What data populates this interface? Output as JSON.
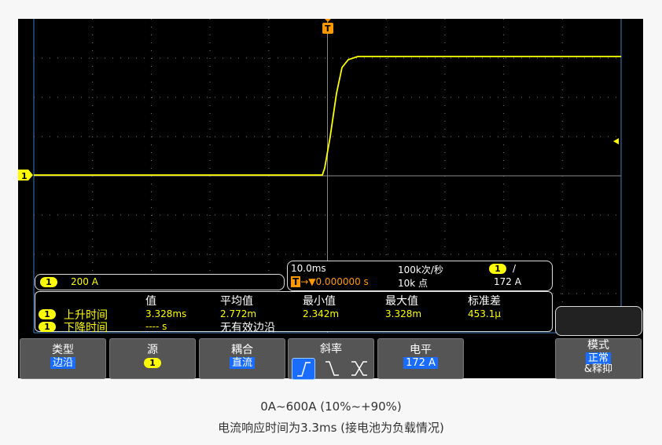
{
  "scope": {
    "channel": "1",
    "channel_color": "#ffff00",
    "trigger_color": "#ff9900",
    "trigger_marker": "T",
    "vertical_scale": "200 A",
    "timebase": "10.0ms",
    "trigger_delay": "0.000000 s",
    "sample_rate": "100k次/秒",
    "points": "10k 点",
    "trigger_slope_symbol": "/",
    "trigger_level": "172 A"
  },
  "measurements": {
    "headers": [
      "值",
      "平均值",
      "最小值",
      "最大值",
      "标准差"
    ],
    "rows": [
      {
        "label": "上升时间",
        "values": [
          "3.328ms",
          "2.772m",
          "2.342m",
          "3.328m",
          "453.1μ"
        ]
      },
      {
        "label": "下降时间",
        "values": [
          "---- s"
        ],
        "note": "无有效边沿"
      }
    ]
  },
  "softkeys": [
    {
      "label": "类型",
      "value": "边沿"
    },
    {
      "label": "源",
      "value": "1"
    },
    {
      "label": "耦合",
      "value": "直流"
    },
    {
      "label": "斜率",
      "options": [
        "rising",
        "falling",
        "either"
      ],
      "selected": "rising"
    },
    {
      "label": "电平",
      "value": "172 A"
    },
    {
      "label": "模式",
      "value": "正常",
      "extra": "&释抑"
    }
  ],
  "caption": {
    "line1": "0A~600A (10%~+90%)",
    "line2": "电流响应时间为3.3ms (接电池为负载情况)"
  }
}
